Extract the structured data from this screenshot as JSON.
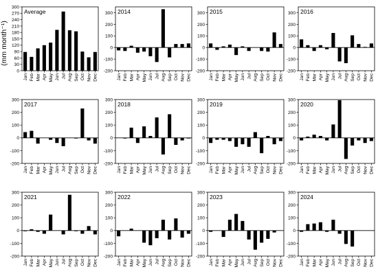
{
  "figure": {
    "ylabel": "(mm month⁻¹)"
  },
  "months": [
    "Jan",
    "Feb",
    "Mar",
    "Apr",
    "May",
    "Jun",
    "Jul",
    "Aug",
    "Sep",
    "Oct",
    "Nov",
    "Dec"
  ],
  "chart_data": [
    {
      "type": "bar",
      "title": "Average",
      "ylim": [
        0,
        300
      ],
      "yticks": [
        0,
        30,
        60,
        90,
        120,
        150,
        180,
        210,
        240,
        270,
        300
      ],
      "values": [
        88,
        65,
        105,
        120,
        132,
        192,
        278,
        190,
        185,
        90,
        63,
        88
      ]
    },
    {
      "type": "bar",
      "title": "2014",
      "ylim": [
        -200,
        350
      ],
      "yticks": [
        -200,
        -100,
        0,
        100,
        200,
        300
      ],
      "values": [
        -25,
        -30,
        15,
        -45,
        -35,
        -75,
        -125,
        330,
        -85,
        30,
        30,
        35
      ]
    },
    {
      "type": "bar",
      "title": "2015",
      "ylim": [
        -200,
        350
      ],
      "yticks": [
        -200,
        -100,
        0,
        100,
        200,
        300
      ],
      "values": [
        35,
        -20,
        10,
        25,
        -65,
        10,
        -30,
        0,
        -30,
        -35,
        130,
        30
      ]
    },
    {
      "type": "bar",
      "title": "2016",
      "ylim": [
        -200,
        350
      ],
      "yticks": [
        -200,
        -100,
        0,
        100,
        200,
        300
      ],
      "values": [
        70,
        20,
        -30,
        20,
        -15,
        125,
        -120,
        -135,
        105,
        30,
        5,
        35
      ]
    },
    {
      "type": "bar",
      "title": "2017",
      "ylim": [
        -200,
        300
      ],
      "yticks": [
        -200,
        -100,
        0,
        100,
        200,
        300
      ],
      "values": [
        45,
        55,
        -45,
        0,
        -15,
        -40,
        -65,
        0,
        -5,
        230,
        -20,
        -45
      ]
    },
    {
      "type": "bar",
      "title": "2018",
      "ylim": [
        -200,
        300
      ],
      "yticks": [
        -200,
        -100,
        0,
        100,
        200,
        300
      ],
      "values": [
        0,
        -5,
        80,
        -40,
        90,
        15,
        160,
        -130,
        185,
        -55,
        -20,
        -5
      ]
    },
    {
      "type": "bar",
      "title": "2019",
      "ylim": [
        -200,
        300
      ],
      "yticks": [
        -200,
        -100,
        0,
        100,
        200,
        300
      ],
      "values": [
        -40,
        -15,
        -15,
        -25,
        -70,
        -50,
        -70,
        45,
        -120,
        15,
        -50,
        -25
      ]
    },
    {
      "type": "bar",
      "title": "2020",
      "ylim": [
        -200,
        300
      ],
      "yticks": [
        -200,
        -100,
        0,
        100,
        200,
        300
      ],
      "values": [
        -20,
        10,
        25,
        15,
        -20,
        105,
        295,
        -165,
        -60,
        -20,
        -40,
        -25
      ]
    },
    {
      "type": "bar",
      "title": "2021",
      "ylim": [
        -200,
        300
      ],
      "yticks": [
        -200,
        -100,
        0,
        100,
        200,
        300
      ],
      "values": [
        -5,
        10,
        -10,
        -25,
        125,
        0,
        -30,
        280,
        -5,
        -25,
        35,
        -30
      ]
    },
    {
      "type": "bar",
      "title": "2022",
      "ylim": [
        -200,
        300
      ],
      "yticks": [
        -200,
        -100,
        0,
        100,
        200,
        300
      ],
      "values": [
        -45,
        0,
        15,
        0,
        -95,
        -115,
        -60,
        85,
        -70,
        95,
        -55,
        -25
      ]
    },
    {
      "type": "bar",
      "title": "2023",
      "ylim": [
        -200,
        300
      ],
      "yticks": [
        -200,
        -100,
        0,
        100,
        200,
        300
      ],
      "values": [
        -10,
        0,
        -50,
        85,
        130,
        75,
        -70,
        -150,
        -95,
        -65,
        -15,
        0
      ]
    },
    {
      "type": "bar",
      "title": "2024",
      "ylim": [
        -200,
        300
      ],
      "yticks": [
        -200,
        -100,
        0,
        100,
        200,
        300
      ],
      "values": [
        -10,
        50,
        55,
        65,
        -10,
        85,
        -25,
        -105,
        -125,
        0,
        0,
        0
      ]
    }
  ]
}
